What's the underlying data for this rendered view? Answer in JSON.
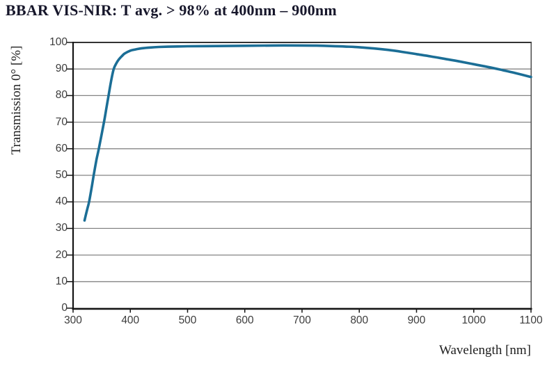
{
  "title": "BBAR VIS-NIR: T avg. > 98% at 400nm – 900nm",
  "chart_data": {
    "type": "line",
    "title": "BBAR VIS-NIR: T avg. > 98% at 400nm – 900nm",
    "xlabel": "Wavelength [nm]",
    "ylabel": "Transmission 0° [%]",
    "xlim": [
      300,
      1100
    ],
    "ylim": [
      0,
      100
    ],
    "x_ticks": [
      300,
      400,
      500,
      600,
      700,
      800,
      900,
      1000,
      1100
    ],
    "y_ticks": [
      0,
      10,
      20,
      30,
      40,
      50,
      60,
      70,
      80,
      90,
      100
    ],
    "grid": "horizontal-only",
    "legend": "none",
    "series": [
      {
        "name": "Transmission 0°",
        "color": "#1b6e96",
        "points": [
          [
            320,
            33
          ],
          [
            325,
            37.5
          ],
          [
            328,
            40
          ],
          [
            333,
            46
          ],
          [
            336,
            50
          ],
          [
            341,
            56
          ],
          [
            345,
            60
          ],
          [
            354,
            70
          ],
          [
            358,
            75
          ],
          [
            362,
            80
          ],
          [
            366,
            85
          ],
          [
            371,
            90
          ],
          [
            376,
            92.3
          ],
          [
            380,
            93.6
          ],
          [
            385,
            94.8
          ],
          [
            390,
            95.8
          ],
          [
            400,
            96.9
          ],
          [
            410,
            97.4
          ],
          [
            420,
            97.8
          ],
          [
            435,
            98.1
          ],
          [
            450,
            98.3
          ],
          [
            475,
            98.45
          ],
          [
            500,
            98.55
          ],
          [
            550,
            98.65
          ],
          [
            600,
            98.75
          ],
          [
            650,
            98.85
          ],
          [
            700,
            98.85
          ],
          [
            725,
            98.8
          ],
          [
            750,
            98.65
          ],
          [
            775,
            98.45
          ],
          [
            800,
            98.2
          ],
          [
            825,
            97.75
          ],
          [
            850,
            97.2
          ],
          [
            875,
            96.45
          ],
          [
            900,
            95.6
          ],
          [
            925,
            94.75
          ],
          [
            950,
            93.8
          ],
          [
            975,
            92.85
          ],
          [
            1000,
            91.8
          ],
          [
            1025,
            90.75
          ],
          [
            1050,
            89.6
          ],
          [
            1075,
            88.35
          ],
          [
            1100,
            87
          ]
        ]
      }
    ],
    "colors": {
      "line": "#1b6e96",
      "gridline": "#848484",
      "axis_dark": "#151515",
      "border_top": "#333333",
      "border_right": "#4d4d4d",
      "tick_text": "#3c3c3c",
      "title_text": "#17172b"
    }
  }
}
